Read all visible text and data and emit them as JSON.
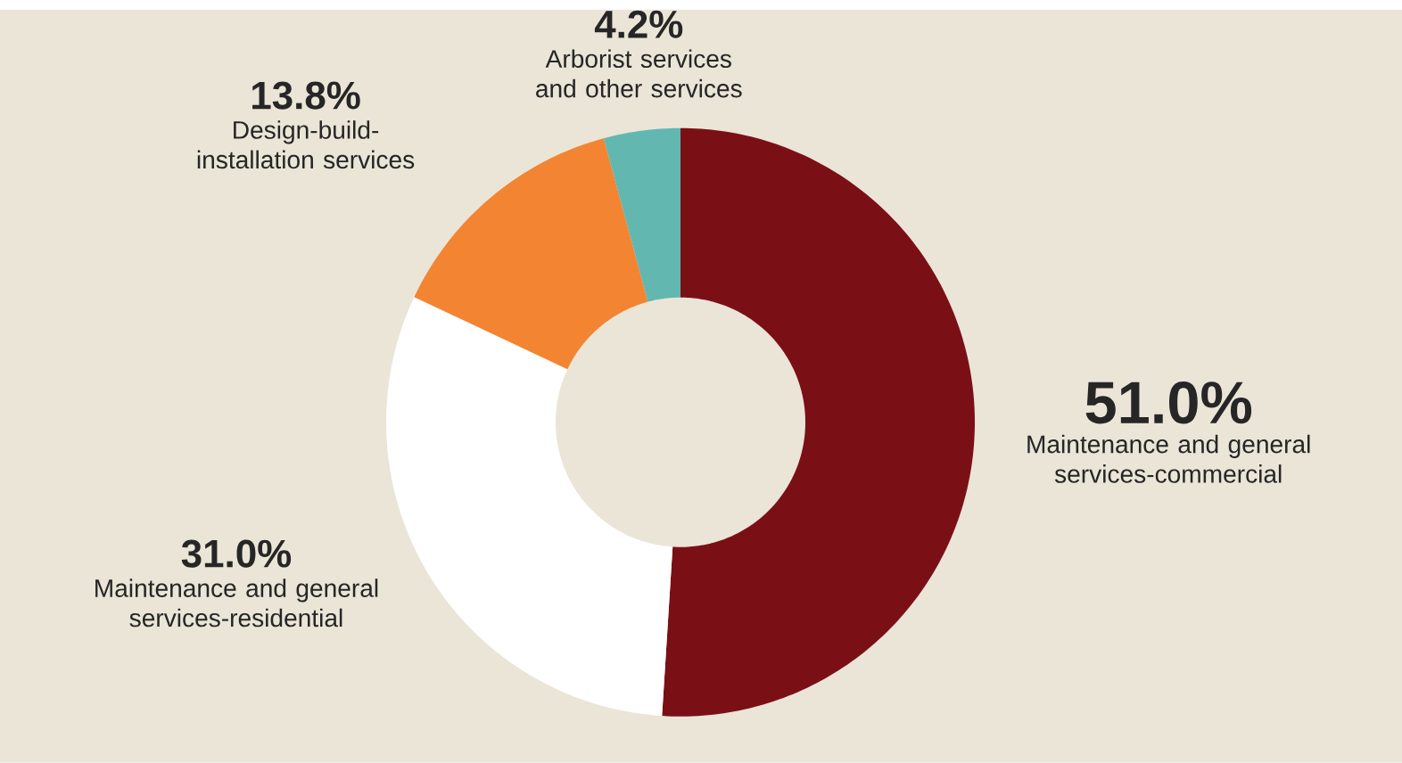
{
  "chart_data": {
    "type": "donut",
    "categories": [
      "Maintenance and general services-commercial",
      "Maintenance and general services-residential",
      "Design-build-installation services",
      "Arborist services and other services"
    ],
    "values": [
      51.0,
      31.0,
      13.8,
      4.2
    ],
    "colors": [
      "#7a1015",
      "#ffffff",
      "#f38532",
      "#62b8b0"
    ],
    "value_labels": [
      "51.0%",
      "31.0%",
      "13.8%",
      "4.2%"
    ]
  }
}
